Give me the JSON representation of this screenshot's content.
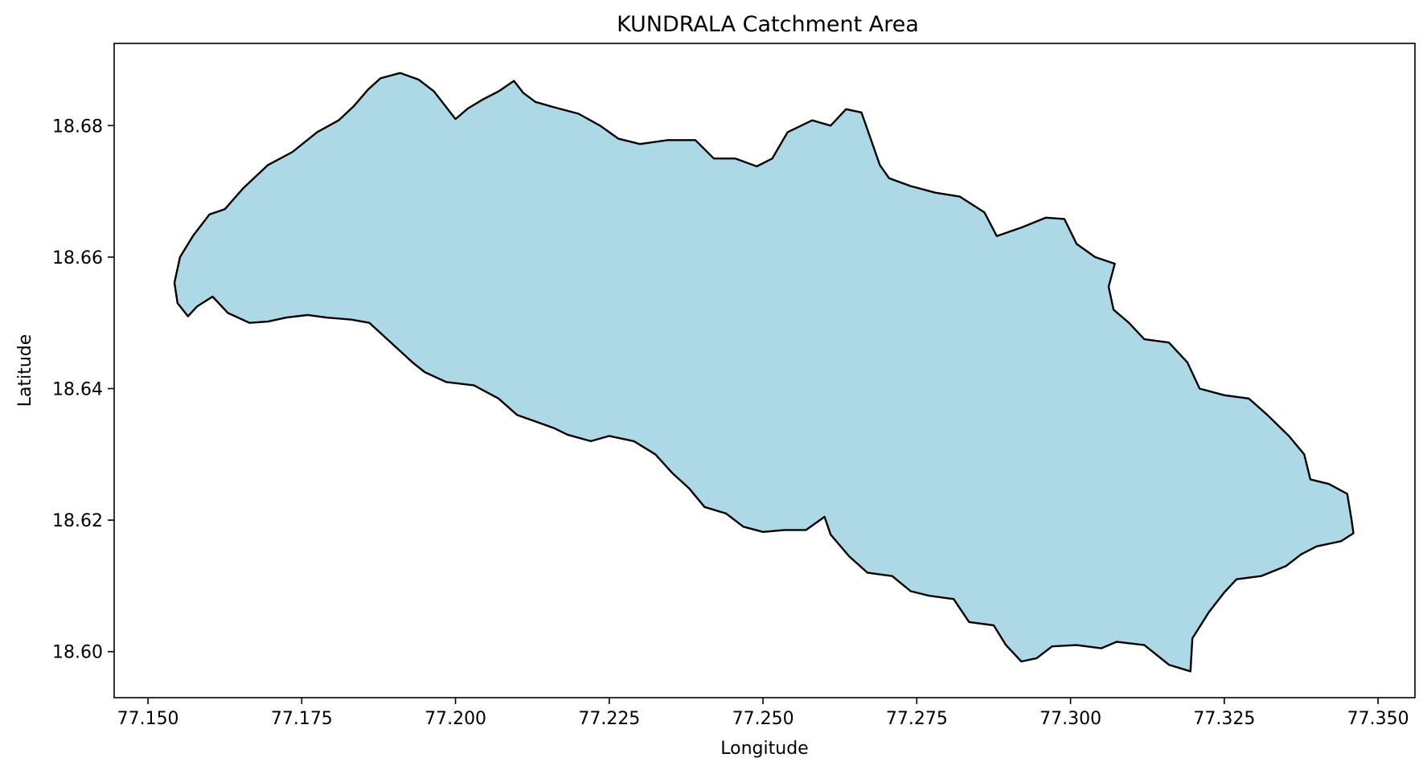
{
  "chart_data": {
    "type": "map",
    "title": "KUNDRALA Catchment Area",
    "xlabel": "Longitude",
    "ylabel": "Latitude",
    "xlim": [
      77.1445,
      77.356
    ],
    "ylim": [
      18.593,
      18.6925
    ],
    "xticks": [
      "77.150",
      "77.175",
      "77.200",
      "77.225",
      "77.250",
      "77.275",
      "77.300",
      "77.325",
      "77.350"
    ],
    "yticks": [
      "18.60",
      "18.62",
      "18.64",
      "18.66",
      "18.68"
    ],
    "grid": false,
    "legend": "none",
    "fill_color": "#add8e6",
    "edge_color": "#000000",
    "boundary": [
      [
        77.1543,
        18.6561
      ],
      [
        77.1552,
        18.66
      ],
      [
        77.1573,
        18.6632
      ],
      [
        77.16,
        18.6665
      ],
      [
        77.1625,
        18.6673
      ],
      [
        77.1655,
        18.6705
      ],
      [
        77.1695,
        18.674
      ],
      [
        77.1735,
        18.676
      ],
      [
        77.1775,
        18.679
      ],
      [
        77.181,
        18.6808
      ],
      [
        77.1835,
        18.683
      ],
      [
        77.1858,
        18.6855
      ],
      [
        77.1878,
        18.6872
      ],
      [
        77.191,
        18.688
      ],
      [
        77.194,
        18.687
      ],
      [
        77.1965,
        18.6852
      ],
      [
        77.1985,
        18.6828
      ],
      [
        77.2,
        18.681
      ],
      [
        77.202,
        18.6826
      ],
      [
        77.2045,
        18.684
      ],
      [
        77.207,
        18.6852
      ],
      [
        77.2095,
        18.6868
      ],
      [
        77.211,
        18.685
      ],
      [
        77.213,
        18.6836
      ],
      [
        77.216,
        18.6828
      ],
      [
        77.22,
        18.6818
      ],
      [
        77.2235,
        18.68
      ],
      [
        77.2265,
        18.678
      ],
      [
        77.23,
        18.6772
      ],
      [
        77.2345,
        18.6778
      ],
      [
        77.239,
        18.6778
      ],
      [
        77.242,
        18.675
      ],
      [
        77.2455,
        18.675
      ],
      [
        77.249,
        18.6738
      ],
      [
        77.2515,
        18.675
      ],
      [
        77.254,
        18.679
      ],
      [
        77.258,
        18.6808
      ],
      [
        77.261,
        18.68
      ],
      [
        77.2635,
        18.6825
      ],
      [
        77.266,
        18.682
      ],
      [
        77.2675,
        18.678
      ],
      [
        77.269,
        18.674
      ],
      [
        77.2705,
        18.672
      ],
      [
        77.274,
        18.6708
      ],
      [
        77.278,
        18.6698
      ],
      [
        77.282,
        18.6692
      ],
      [
        77.286,
        18.6668
      ],
      [
        77.288,
        18.6632
      ],
      [
        77.292,
        18.6645
      ],
      [
        77.296,
        18.666
      ],
      [
        77.299,
        18.6658
      ],
      [
        77.301,
        18.662
      ],
      [
        77.304,
        18.66
      ],
      [
        77.3072,
        18.659
      ],
      [
        77.3062,
        18.6555
      ],
      [
        77.307,
        18.652
      ],
      [
        77.3095,
        18.65
      ],
      [
        77.312,
        18.6475
      ],
      [
        77.316,
        18.647
      ],
      [
        77.319,
        18.644
      ],
      [
        77.321,
        18.64
      ],
      [
        77.325,
        18.639
      ],
      [
        77.329,
        18.6385
      ],
      [
        77.332,
        18.636
      ],
      [
        77.3355,
        18.6328
      ],
      [
        77.338,
        18.63
      ],
      [
        77.339,
        18.6262
      ],
      [
        77.342,
        18.6255
      ],
      [
        77.345,
        18.624
      ],
      [
        77.3457,
        18.62
      ],
      [
        77.346,
        18.618
      ],
      [
        77.344,
        18.6168
      ],
      [
        77.34,
        18.616
      ],
      [
        77.3375,
        18.6148
      ],
      [
        77.335,
        18.613
      ],
      [
        77.331,
        18.6115
      ],
      [
        77.327,
        18.611
      ],
      [
        77.325,
        18.609
      ],
      [
        77.3225,
        18.606
      ],
      [
        77.3198,
        18.602
      ],
      [
        77.3195,
        18.597
      ],
      [
        77.316,
        18.598
      ],
      [
        77.312,
        18.601
      ],
      [
        77.3075,
        18.6015
      ],
      [
        77.305,
        18.6005
      ],
      [
        77.301,
        18.601
      ],
      [
        77.297,
        18.6008
      ],
      [
        77.2945,
        18.599
      ],
      [
        77.292,
        18.5985
      ],
      [
        77.2895,
        18.601
      ],
      [
        77.2875,
        18.604
      ],
      [
        77.2835,
        18.6045
      ],
      [
        77.281,
        18.608
      ],
      [
        77.277,
        18.6085
      ],
      [
        77.274,
        18.6092
      ],
      [
        77.271,
        18.6115
      ],
      [
        77.267,
        18.612
      ],
      [
        77.264,
        18.6145
      ],
      [
        77.261,
        18.6178
      ],
      [
        77.26,
        18.6205
      ],
      [
        77.257,
        18.6185
      ],
      [
        77.2535,
        18.6185
      ],
      [
        77.25,
        18.6182
      ],
      [
        77.2468,
        18.619
      ],
      [
        77.244,
        18.621
      ],
      [
        77.2405,
        18.622
      ],
      [
        77.238,
        18.6248
      ],
      [
        77.2352,
        18.6272
      ],
      [
        77.2325,
        18.63
      ],
      [
        77.229,
        18.632
      ],
      [
        77.225,
        18.6328
      ],
      [
        77.222,
        18.632
      ],
      [
        77.2182,
        18.633
      ],
      [
        77.216,
        18.634
      ],
      [
        77.213,
        18.635
      ],
      [
        77.21,
        18.636
      ],
      [
        77.207,
        18.6385
      ],
      [
        77.203,
        18.6405
      ],
      [
        77.1985,
        18.641
      ],
      [
        77.195,
        18.6425
      ],
      [
        77.193,
        18.644
      ],
      [
        77.1895,
        18.647
      ],
      [
        77.186,
        18.65
      ],
      [
        77.183,
        18.6505
      ],
      [
        77.179,
        18.6508
      ],
      [
        77.176,
        18.6512
      ],
      [
        77.1725,
        18.6508
      ],
      [
        77.1695,
        18.6502
      ],
      [
        77.1665,
        18.65
      ],
      [
        77.163,
        18.6515
      ],
      [
        77.1605,
        18.654
      ],
      [
        77.158,
        18.6525
      ],
      [
        77.1565,
        18.651
      ],
      [
        77.1548,
        18.653
      ],
      [
        77.1543,
        18.6561
      ]
    ]
  }
}
